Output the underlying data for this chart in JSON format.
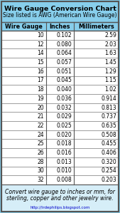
{
  "title": "Wire Gauge Conversion Chart",
  "subtitle": "Size listed is AWG (American Wire Gauge)",
  "headers": [
    "Wire Gauge",
    "Inches",
    "Millimeters"
  ],
  "rows": [
    [
      "10",
      "0.102",
      "2.59"
    ],
    [
      "12",
      "0.080",
      "2.03"
    ],
    [
      "14",
      "0.064",
      "1.63"
    ],
    [
      "15",
      "0.057",
      "1.45"
    ],
    [
      "16",
      "0.051",
      "1.29"
    ],
    [
      "17",
      "0.045",
      "1.15"
    ],
    [
      "18",
      "0.040",
      "1.02"
    ],
    [
      "19",
      "0.036",
      "0.914"
    ],
    [
      "20",
      "0.032",
      "0.813"
    ],
    [
      "21",
      "0.029",
      "0.737"
    ],
    [
      "22",
      "0.025",
      "0.635"
    ],
    [
      "24",
      "0.020",
      "0.508"
    ],
    [
      "25",
      "0.018",
      "0.455"
    ],
    [
      "26",
      "0.016",
      "0.406"
    ],
    [
      "28",
      "0.013",
      "0.320"
    ],
    [
      "30",
      "0.010",
      "0.254"
    ],
    [
      "32",
      "0.008",
      "0.203"
    ]
  ],
  "footer_line1": "Convert wire gauge to inches or mm, for",
  "footer_line2": "sterling, copper and other jewelry wire.",
  "footer_url": "http://irdephilips.blogspot.com",
  "bg_color": "#87CEEB",
  "title_bg": "#87CEEB",
  "header_bg": "#87CEEB",
  "row_bg": "#FFFFFF",
  "footer_bg": "#D6EEF8",
  "border_color": "#555555",
  "title_fontsize": 6.8,
  "subtitle_fontsize": 5.5,
  "header_fontsize": 5.8,
  "cell_fontsize": 5.5,
  "footer_fontsize": 5.5,
  "url_fontsize": 4.0,
  "col_splits": [
    0.38,
    0.62
  ]
}
